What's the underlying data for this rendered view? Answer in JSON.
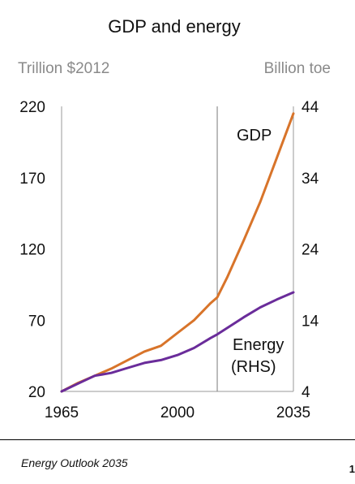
{
  "footer": {
    "source": "Energy Outlook 2035",
    "page": "1"
  },
  "chart_data": {
    "type": "line",
    "title": "GDP and energy",
    "ylabel_left": "Trillion $2012",
    "ylabel_right": "Billion toe",
    "xlim": [
      1965,
      2035
    ],
    "ylim_left": [
      20,
      220
    ],
    "ylim_right": [
      4,
      44
    ],
    "x_ticks": [
      "1965",
      "2000",
      "2035"
    ],
    "y_ticks_left": [
      "220",
      "170",
      "120",
      "70",
      "20"
    ],
    "y_ticks_right": [
      "44",
      "34",
      "24",
      "14",
      "4"
    ],
    "projection_start": 2012,
    "grid": false,
    "series": [
      {
        "name": "GDP",
        "axis": "left",
        "color": "#d8742a",
        "x": [
          1965,
          1970,
          1975,
          1980,
          1985,
          1990,
          1995,
          2000,
          2005,
          2010,
          2012,
          2015,
          2020,
          2025,
          2030,
          2035
        ],
        "y": [
          20,
          26,
          31,
          36,
          42,
          48,
          52,
          61,
          70,
          82,
          86,
          100,
          126,
          153,
          184,
          215
        ]
      },
      {
        "name": "Energy\n(RHS)",
        "axis": "right",
        "color": "#6a2c9a",
        "x": [
          1965,
          1970,
          1975,
          1980,
          1985,
          1990,
          1995,
          2000,
          2005,
          2010,
          2012,
          2015,
          2020,
          2025,
          2030,
          2035
        ],
        "y": [
          4.0,
          5.1,
          6.2,
          6.6,
          7.3,
          8.0,
          8.4,
          9.1,
          10.1,
          11.5,
          12.0,
          12.9,
          14.4,
          15.8,
          16.9,
          17.9
        ]
      }
    ],
    "series_labels": [
      "GDP",
      "Energy",
      "(RHS)"
    ]
  }
}
